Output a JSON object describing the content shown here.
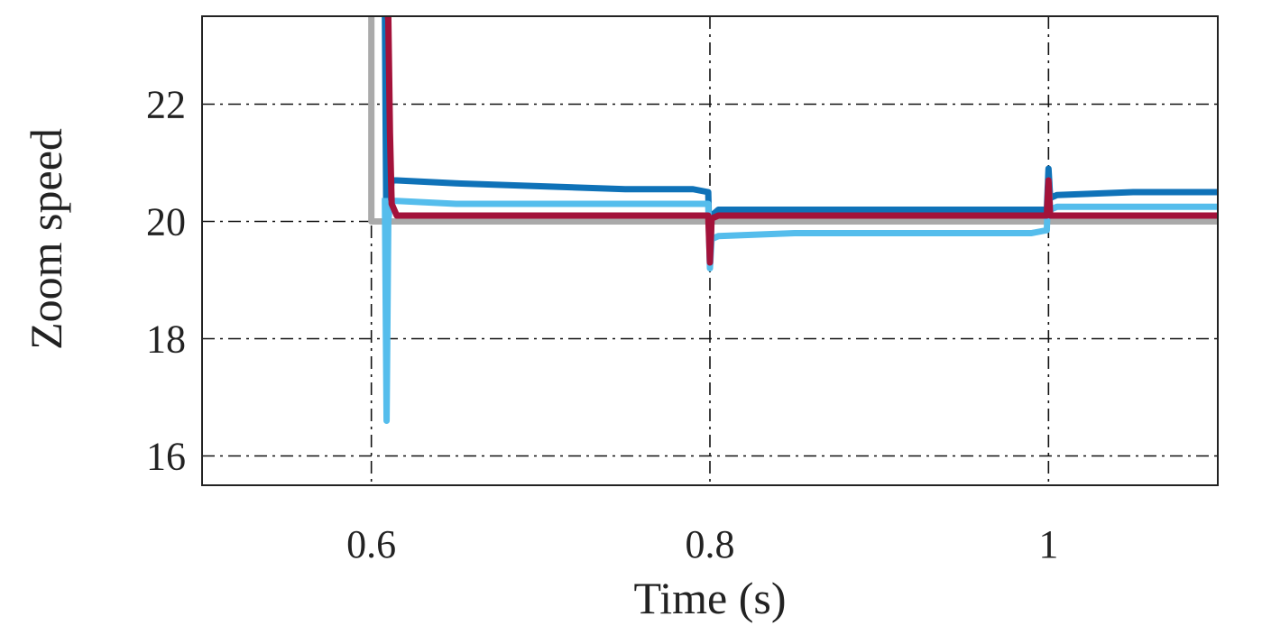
{
  "chart_data": {
    "type": "line",
    "x_label": "Time (s)",
    "y_label": "Zoom speed",
    "x": [
      0.6,
      0.6,
      0.608,
      0.609,
      0.61,
      0.611,
      0.612,
      0.615,
      0.65,
      0.7,
      0.75,
      0.79,
      0.799,
      0.8,
      0.801,
      0.805,
      0.85,
      0.9,
      0.95,
      0.99,
      0.999,
      1.0,
      1.001,
      1.005,
      1.05,
      1.1
    ],
    "series": [
      {
        "color": "#aaaaaa",
        "values": [
          23.5,
          20,
          20,
          20,
          20,
          20,
          20,
          20,
          20,
          20,
          20,
          20,
          20,
          20,
          20,
          20,
          20,
          20,
          20,
          20,
          20,
          20,
          20,
          20,
          20,
          20
        ]
      },
      {
        "color": "#0f72b8",
        "values": [
          null,
          null,
          23.5,
          19.3,
          21,
          20.4,
          20.7,
          20.7,
          20.65,
          20.6,
          20.55,
          20.55,
          20.5,
          19.3,
          20.1,
          20.2,
          20.2,
          20.2,
          20.2,
          20.2,
          20.2,
          20.9,
          20.4,
          20.45,
          20.5,
          20.5
        ]
      },
      {
        "color": "#55bdec",
        "values": [
          null,
          null,
          20.4,
          16.6,
          20,
          20.3,
          20.35,
          20.35,
          20.3,
          20.3,
          20.3,
          20.3,
          20.3,
          19.2,
          19.7,
          19.75,
          19.8,
          19.8,
          19.8,
          19.8,
          19.85,
          20.7,
          20.2,
          20.25,
          20.25,
          20.25
        ]
      },
      {
        "color": "#a3123a",
        "values": [
          null,
          null,
          23.5,
          23.5,
          23.5,
          21.5,
          20.3,
          20.1,
          20.1,
          20.1,
          20.1,
          20.1,
          20.1,
          19.3,
          20.05,
          20.1,
          20.1,
          20.1,
          20.1,
          20.1,
          20.1,
          20.7,
          20.1,
          20.1,
          20.1,
          20.1
        ]
      }
    ],
    "xlim": [
      0.5,
      1.1
    ],
    "xticks": [
      0.6,
      0.8,
      1
    ],
    "ylim": [
      15.5,
      23.5
    ],
    "yticks": [
      16,
      18,
      20,
      22
    ],
    "grid": true
  }
}
